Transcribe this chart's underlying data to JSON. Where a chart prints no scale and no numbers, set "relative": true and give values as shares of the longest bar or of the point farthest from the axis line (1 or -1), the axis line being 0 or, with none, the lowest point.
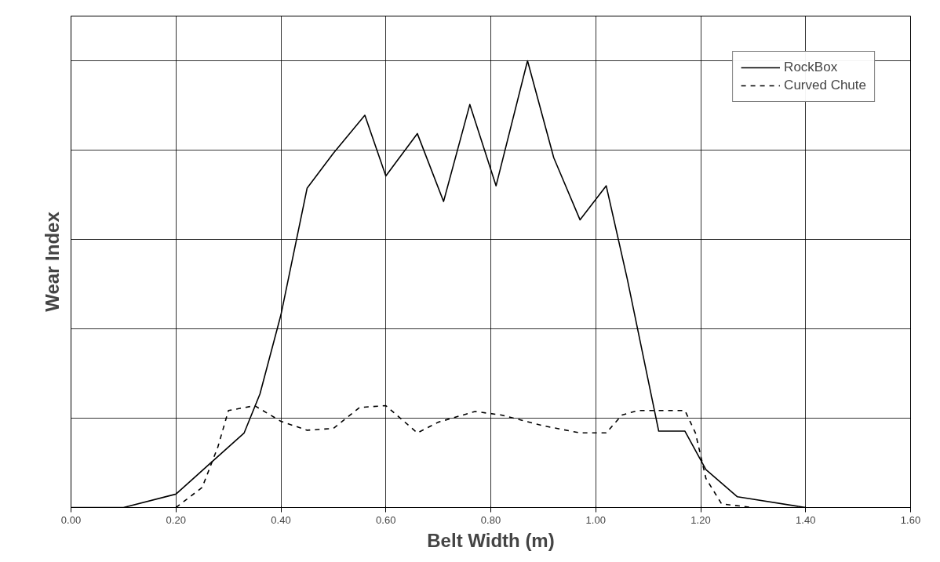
{
  "chart_data": {
    "type": "line",
    "xlabel": "Belt Width (m)",
    "ylabel": "Wear Index",
    "relative": true,
    "xlim": [
      0,
      1.6
    ],
    "xticks": [
      {
        "value": 0,
        "label": "0.00"
      },
      {
        "value": 0.2,
        "label": "0.20"
      },
      {
        "value": 0.4,
        "label": "0.40"
      },
      {
        "value": 0.6,
        "label": "0.60"
      },
      {
        "value": 0.8,
        "label": "0.80"
      },
      {
        "value": 1.0,
        "label": "1.00"
      },
      {
        "value": 1.2,
        "label": "1.20"
      },
      {
        "value": 1.4,
        "label": "1.40"
      },
      {
        "value": 1.6,
        "label": "1.60"
      }
    ],
    "grid": true,
    "legend": "top right",
    "marker": "none",
    "series": [
      {
        "name": "RockBox",
        "color": "#000000",
        "line_style": "solid",
        "x": [
          0,
          0.1,
          0.2,
          0.33,
          0.36,
          0.4,
          0.45,
          0.5,
          0.56,
          0.6,
          0.66,
          0.71,
          0.76,
          0.81,
          0.87,
          0.92,
          0.97,
          1.02,
          1.06,
          1.12,
          1.17,
          1.21,
          1.27,
          1.4
        ],
        "values": [
          0,
          0,
          0.03,
          0.167,
          0.254,
          0.431,
          0.715,
          0.793,
          0.878,
          0.742,
          0.837,
          0.685,
          0.902,
          0.72,
          1,
          0.783,
          0.644,
          0.72,
          0.512,
          0.171,
          0.171,
          0.085,
          0.024,
          0
        ]
      },
      {
        "name": "Curved Chute",
        "color": "#000000",
        "line_style": "dashed",
        "x": [
          0.2,
          0.25,
          0.28,
          0.3,
          0.35,
          0.4,
          0.45,
          0.5,
          0.55,
          0.6,
          0.66,
          0.7,
          0.77,
          0.82,
          0.9,
          0.97,
          1.02,
          1.05,
          1.08,
          1.17,
          1.19,
          1.21,
          1.24,
          1.3
        ],
        "values": [
          0,
          0.045,
          0.136,
          0.217,
          0.228,
          0.193,
          0.173,
          0.177,
          0.224,
          0.228,
          0.167,
          0.191,
          0.215,
          0.207,
          0.183,
          0.167,
          0.167,
          0.207,
          0.217,
          0.217,
          0.167,
          0.065,
          0.008,
          0
        ]
      }
    ]
  }
}
